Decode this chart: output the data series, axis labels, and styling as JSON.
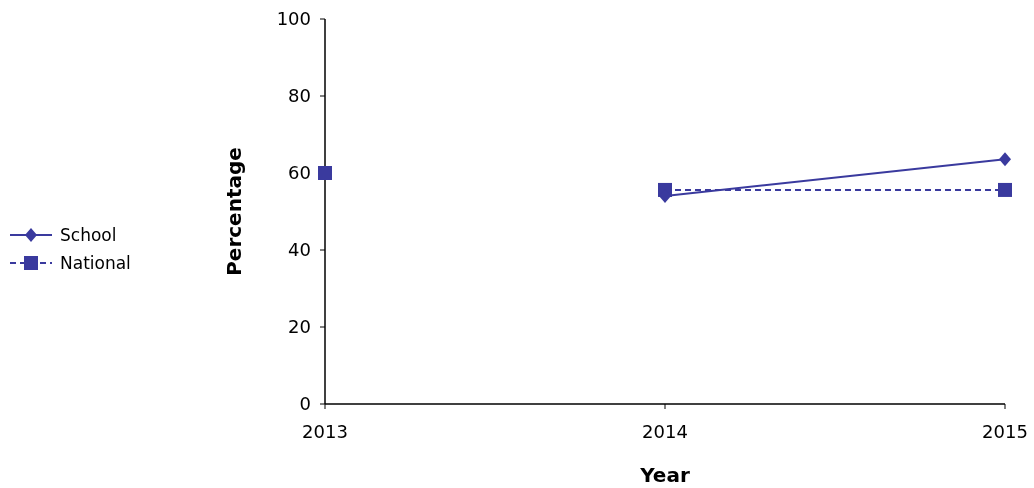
{
  "chart_data": {
    "type": "line",
    "xlabel": "Year",
    "ylabel": "Percentage",
    "xlim": [
      2013,
      2015
    ],
    "xticks": [
      2013,
      2014,
      2015
    ],
    "ylim": [
      0,
      100
    ],
    "yticks": [
      0,
      20,
      40,
      60,
      80,
      100
    ],
    "grid": false,
    "legend": "left",
    "series": [
      {
        "name": "School",
        "color": "#3a3a9e",
        "x": [
          2014,
          2015
        ],
        "values": [
          54,
          63.6
        ],
        "marker": "diamond",
        "line_style": "solid"
      },
      {
        "name": "National",
        "color": "#3a3a9e",
        "x": [
          2013,
          2013.5,
          2014,
          2015
        ],
        "values": [
          60,
          null,
          55.6,
          55.6
        ],
        "marker": "square",
        "line_style": "dashed"
      }
    ]
  }
}
